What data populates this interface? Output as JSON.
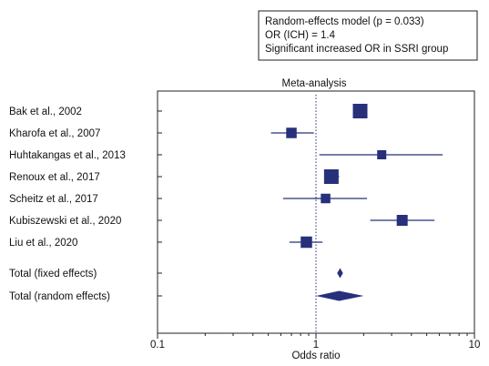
{
  "chart_data": {
    "type": "forest",
    "title": "Meta-analysis",
    "xlabel": "Odds ratio",
    "x_scale": "log",
    "xlim": [
      0.1,
      10
    ],
    "x_ticks": [
      "0.1",
      "1",
      "10"
    ],
    "reference_line": 1,
    "annotation_lines": [
      "Random-effects model (p = 0.033)",
      "OR (ICH) = 1.4",
      "Significant increased OR in SSRI group"
    ],
    "studies": [
      {
        "label": "Bak et al., 2002",
        "or": 1.9,
        "ci": [
          1.75,
          2.1
        ],
        "weight": 1.0
      },
      {
        "label": "Kharofa et al., 2007",
        "or": 0.7,
        "ci": [
          0.52,
          0.97
        ],
        "weight": 0.55
      },
      {
        "label": "Huhtakangas et al., 2013",
        "or": 2.6,
        "ci": [
          1.05,
          6.3
        ],
        "weight": 0.4
      },
      {
        "label": "Renoux et al., 2017",
        "or": 1.25,
        "ci": [
          1.15,
          1.4
        ],
        "weight": 1.0
      },
      {
        "label": "Scheitz et al., 2017",
        "or": 1.15,
        "ci": [
          0.62,
          2.1
        ],
        "weight": 0.45
      },
      {
        "label": "Kubiszewski et al., 2020",
        "or": 3.5,
        "ci": [
          2.2,
          5.6
        ],
        "weight": 0.6
      },
      {
        "label": "Liu et al., 2020",
        "or": 0.87,
        "ci": [
          0.68,
          1.1
        ],
        "weight": 0.65
      }
    ],
    "summaries": [
      {
        "label": "Total (fixed effects)",
        "or": 1.42,
        "ci": [
          1.36,
          1.48
        ]
      },
      {
        "label": "Total (random effects)",
        "or": 1.4,
        "ci": [
          1.0,
          2.0
        ]
      }
    ],
    "color": "#27307a"
  }
}
